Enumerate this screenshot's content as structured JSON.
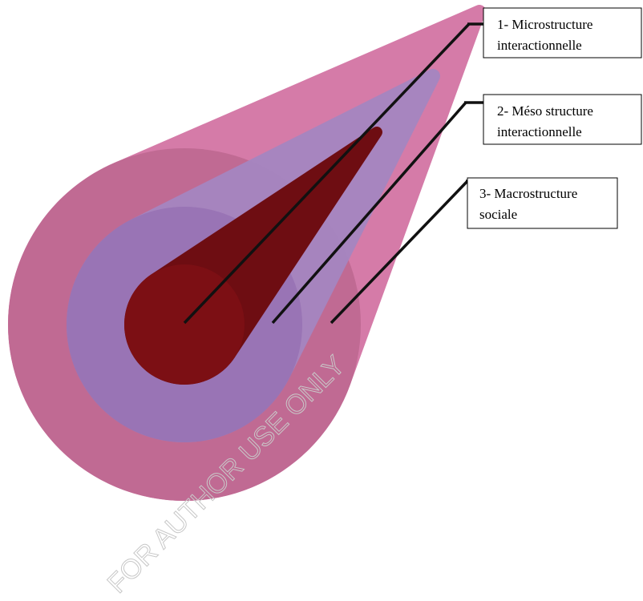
{
  "labels": [
    {
      "lines": [
        "1- Microstructure",
        "interactionnelle"
      ]
    },
    {
      "lines": [
        "2- Méso structure",
        "interactionnelle"
      ]
    },
    {
      "lines": [
        "3- Macrostructure",
        "sociale"
      ]
    }
  ],
  "watermark": "FOR AUTHOR USE ONLY"
}
